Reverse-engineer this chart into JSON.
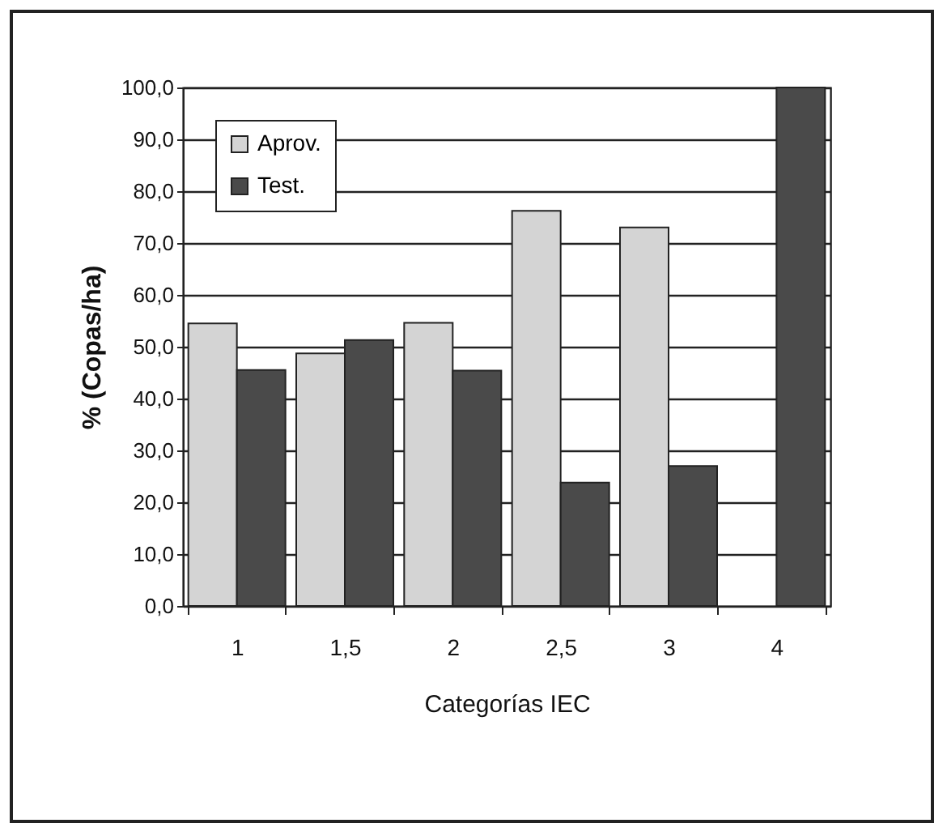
{
  "chart_data": {
    "type": "bar",
    "xlabel": "Categorías IEC",
    "ylabel": "% (Copas/ha)",
    "categories": [
      "1",
      "1,5",
      "2",
      "2,5",
      "3",
      "4"
    ],
    "series": [
      {
        "name": "Aprov.",
        "color": "#d4d4d4",
        "values": [
          54.5,
          48.7,
          54.6,
          76.2,
          73.0,
          null
        ]
      },
      {
        "name": "Test.",
        "color": "#4a4a4a",
        "values": [
          45.5,
          51.3,
          45.4,
          23.8,
          27.0,
          100
        ]
      }
    ],
    "ylim": [
      0,
      100
    ],
    "yticks": [
      {
        "value": 0,
        "label": "0,0"
      },
      {
        "value": 10,
        "label": "10,0"
      },
      {
        "value": 20,
        "label": "20,0"
      },
      {
        "value": 30,
        "label": "30,0"
      },
      {
        "value": 40,
        "label": "40,0"
      },
      {
        "value": 50,
        "label": "50,0"
      },
      {
        "value": 60,
        "label": "60,0"
      },
      {
        "value": 70,
        "label": "70,0"
      },
      {
        "value": 80,
        "label": "80,0"
      },
      {
        "value": 90,
        "label": "90,0"
      },
      {
        "value": 100,
        "label": "100,0"
      }
    ],
    "grid": "y",
    "legend": "top left"
  }
}
